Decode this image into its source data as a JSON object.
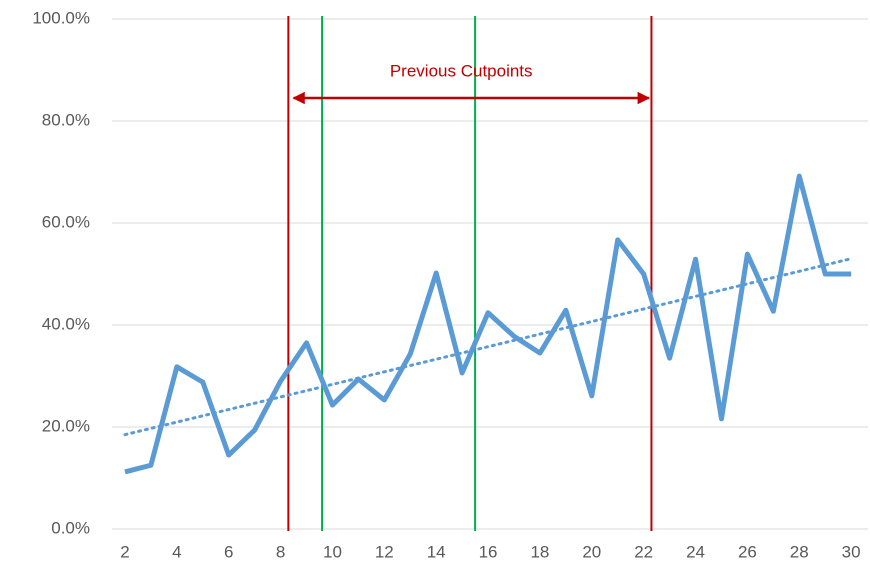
{
  "chart_data": {
    "type": "line",
    "x": [
      2,
      3,
      4,
      5,
      6,
      7,
      8,
      9,
      10,
      11,
      12,
      13,
      14,
      15,
      16,
      17,
      18,
      19,
      20,
      21,
      22,
      23,
      24,
      25,
      26,
      27,
      28,
      29,
      30
    ],
    "series": [
      {
        "color": "#5b9bd5",
        "values": [
          11.2,
          12.5,
          31.8,
          28.8,
          14.5,
          19.4,
          29,
          36.5,
          24.3,
          29.4,
          25.3,
          34.3,
          50.2,
          30.6,
          42.4,
          37.8,
          34.5,
          42.9,
          26.1,
          56.7,
          50,
          33.5,
          52.9,
          21.6,
          53.9,
          42.7,
          69.2,
          50,
          50
        ]
      }
    ],
    "trendline": {
      "color": "#5b9bd5",
      "x": [
        2,
        30
      ],
      "values": [
        18.5,
        53
      ]
    },
    "vlines": [
      {
        "x": 8.3,
        "color": "#c00000"
      },
      {
        "x": 9.6,
        "color": "#00b050"
      },
      {
        "x": 15.5,
        "color": "#00b050"
      },
      {
        "x": 22.3,
        "color": "#c00000"
      }
    ],
    "annotation": {
      "text": "Previous Cutpoints",
      "color": "#c00000",
      "x_from": 8.5,
      "x_to": 22.2,
      "y": 84.5
    },
    "xlim": [
      1.5,
      30.65
    ],
    "xticks": [
      2,
      4,
      6,
      8,
      10,
      12,
      14,
      16,
      18,
      20,
      22,
      24,
      26,
      28,
      30
    ],
    "ylim": [
      0,
      100
    ],
    "yticks": [
      {
        "value": 0,
        "label": "0.0%"
      },
      {
        "value": 20,
        "label": "20.0%"
      },
      {
        "value": 40,
        "label": "40.0%"
      },
      {
        "value": 60,
        "label": "60.0%"
      },
      {
        "value": 80,
        "label": "80.0%"
      },
      {
        "value": 100,
        "label": "100.0%"
      }
    ],
    "grid": true
  }
}
